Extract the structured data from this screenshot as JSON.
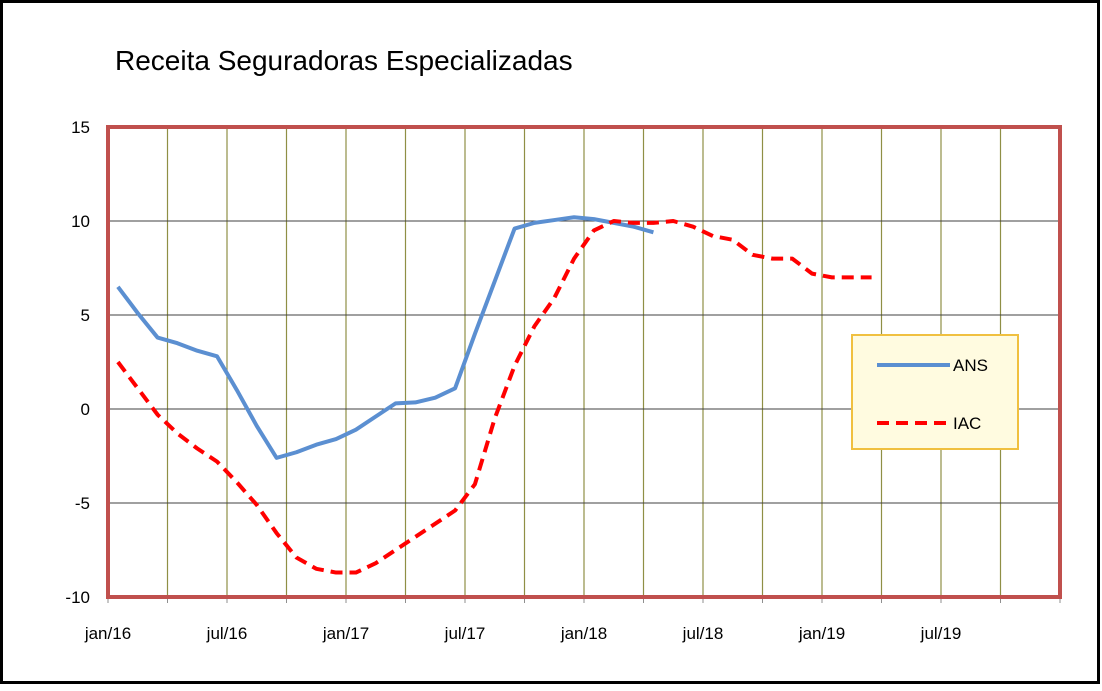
{
  "chart_data": {
    "type": "line",
    "title": "Receita Seguradoras Especializadas",
    "categories": [
      "jan/16",
      null,
      null,
      null,
      null,
      null,
      "jul/16",
      null,
      null,
      null,
      null,
      null,
      "jan/17",
      null,
      null,
      null,
      null,
      null,
      "jul/17",
      null,
      null,
      null,
      null,
      null,
      "jan/18",
      null,
      null,
      null,
      null,
      null,
      "jul/18",
      null,
      null,
      null,
      null,
      null,
      "jan/19",
      null,
      null,
      null,
      null,
      null,
      "jul/19",
      null,
      null,
      null,
      null,
      null
    ],
    "series": [
      {
        "name": "ANS",
        "color": "#5b8fd1",
        "dash": false,
        "values": [
          6.5,
          5.1,
          3.8,
          3.5,
          3.1,
          2.8,
          1.0,
          -0.9,
          -2.6,
          -2.3,
          -1.9,
          -1.6,
          -1.1,
          -0.4,
          0.3,
          0.35,
          0.6,
          1.1,
          4.0,
          6.8,
          9.6,
          9.9,
          10.05,
          10.2,
          10.1,
          9.9,
          9.7,
          9.4,
          null,
          null,
          null,
          null,
          null,
          null,
          null,
          null,
          null,
          null,
          null,
          null,
          null,
          null,
          null,
          null,
          null,
          null,
          null,
          null
        ]
      },
      {
        "name": "IAC",
        "color": "#ff0000",
        "dash": true,
        "values": [
          2.5,
          1.1,
          -0.3,
          -1.3,
          -2.1,
          -2.8,
          -3.9,
          -5.1,
          -6.6,
          -7.9,
          -8.5,
          -8.7,
          -8.7,
          -8.2,
          -7.5,
          -6.8,
          -6.1,
          -5.4,
          -4.0,
          -0.5,
          2.3,
          4.4,
          5.9,
          8.0,
          9.5,
          10.0,
          9.9,
          9.9,
          10.0,
          9.7,
          9.2,
          9.0,
          8.2,
          8.0,
          8.0,
          7.2,
          7.0,
          7.0,
          7.0,
          null,
          null,
          null,
          null,
          null,
          null,
          null,
          null,
          null
        ]
      }
    ],
    "ylim": [
      -10,
      15
    ],
    "yticks": [
      -10,
      -5,
      0,
      5,
      10,
      15
    ],
    "grid": true,
    "legend": "right"
  }
}
